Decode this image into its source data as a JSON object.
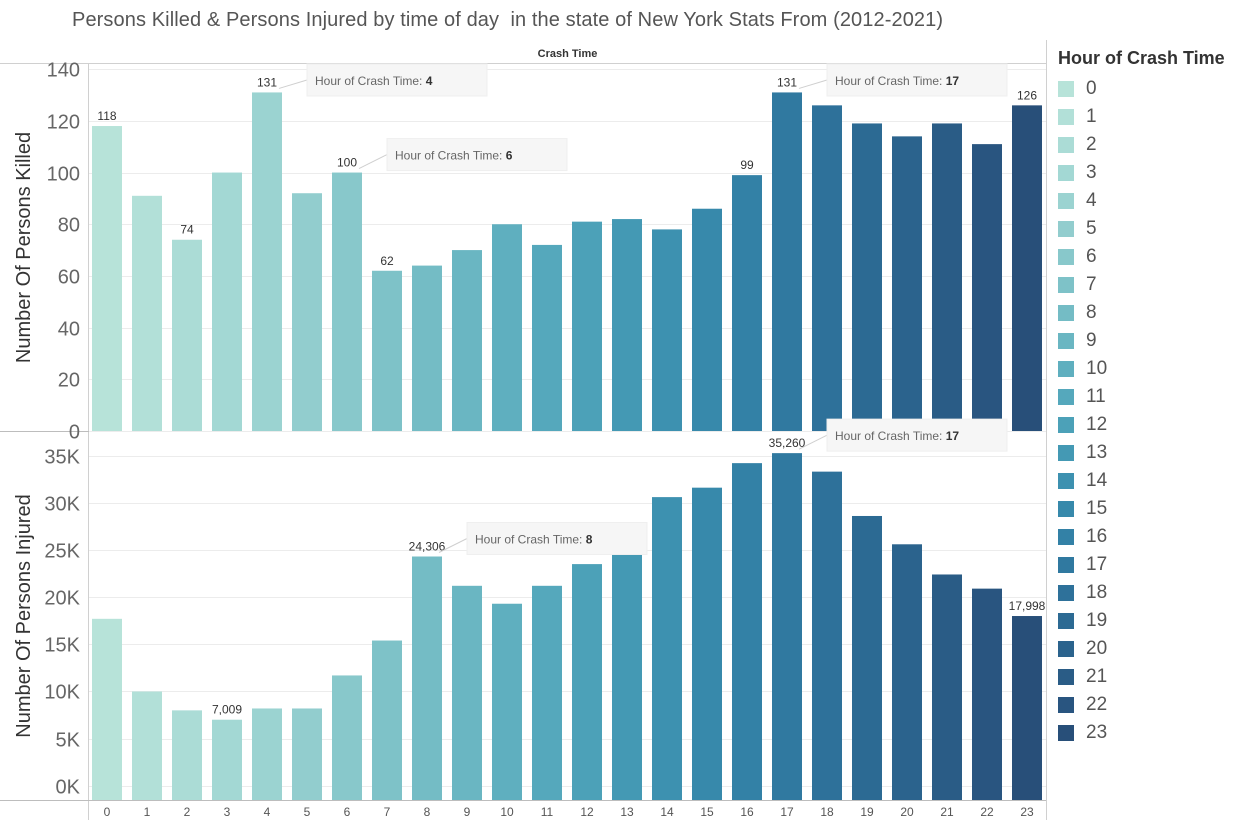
{
  "title": "Persons Killed & Persons Injured by time of day  in the state of New York Stats From (2012-2021)",
  "column_header": "Crash Time",
  "legend": {
    "title": "Hour of Crash Time",
    "colors": [
      "#b7e3d9",
      "#b2e0d8",
      "#abdcd6",
      "#a3d8d4",
      "#9bd3d1",
      "#92cdce",
      "#88c8cb",
      "#7ec2c8",
      "#74bcc5",
      "#6ab6c2",
      "#5fafbf",
      "#55a8bc",
      "#4ca1b8",
      "#4499b4",
      "#3d91b0",
      "#3789ab",
      "#3381a6",
      "#3079a0",
      "#2e719a",
      "#2c6a93",
      "#2b638d",
      "#2a5c86",
      "#295580",
      "#284f79"
    ]
  },
  "tooltip_prefix": "Hour of Crash Time: ",
  "chart_data": [
    {
      "type": "bar",
      "ylabel": "Number Of Persons Killed",
      "categories": [
        "0",
        "1",
        "2",
        "3",
        "4",
        "5",
        "6",
        "7",
        "8",
        "9",
        "10",
        "11",
        "12",
        "13",
        "14",
        "15",
        "16",
        "17",
        "18",
        "19",
        "20",
        "21",
        "22",
        "23"
      ],
      "values": [
        118,
        91,
        74,
        100,
        131,
        92,
        100,
        62,
        64,
        70,
        80,
        72,
        81,
        82,
        78,
        86,
        99,
        131,
        126,
        119,
        114,
        119,
        111,
        126
      ],
      "ylim": [
        0,
        142
      ],
      "yticks": [
        0,
        20,
        40,
        60,
        80,
        100,
        120,
        140
      ],
      "ytick_labels": [
        "0",
        "20",
        "40",
        "60",
        "80",
        "100",
        "120",
        "140"
      ],
      "data_labels": {
        "0": "118",
        "2": "74",
        "4": "131",
        "6": "100",
        "7": "62",
        "16": "99",
        "17": "131",
        "23": "126"
      },
      "tooltips": [
        {
          "hour": 4,
          "label": "4"
        },
        {
          "hour": 6,
          "label": "6"
        },
        {
          "hour": 17,
          "label": "17"
        }
      ],
      "grid": true
    },
    {
      "type": "bar",
      "ylabel": "Number Of Persons Injured",
      "categories": [
        "0",
        "1",
        "2",
        "3",
        "4",
        "5",
        "6",
        "7",
        "8",
        "9",
        "10",
        "11",
        "12",
        "13",
        "14",
        "15",
        "16",
        "17",
        "18",
        "19",
        "20",
        "21",
        "22",
        "23"
      ],
      "values": [
        17700,
        10000,
        8000,
        7009,
        8200,
        8200,
        11700,
        15400,
        24306,
        21200,
        19300,
        21200,
        23500,
        24600,
        30600,
        31600,
        34200,
        35260,
        33300,
        28600,
        25600,
        22400,
        20900,
        17998
      ],
      "ylim": [
        -1500,
        37500
      ],
      "yticks": [
        0,
        5000,
        10000,
        15000,
        20000,
        25000,
        30000,
        35000
      ],
      "ytick_labels": [
        "0K",
        "5K",
        "10K",
        "15K",
        "20K",
        "25K",
        "30K",
        "35K"
      ],
      "data_labels": {
        "3": "7,009",
        "8": "24,306",
        "17": "35,260",
        "23": "17,998"
      },
      "tooltips": [
        {
          "hour": 8,
          "label": "8"
        },
        {
          "hour": 17,
          "label": "17"
        }
      ],
      "grid": true
    }
  ]
}
